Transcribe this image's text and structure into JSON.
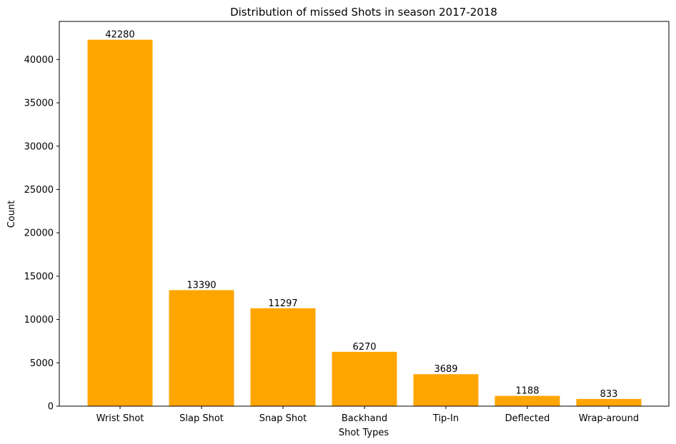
{
  "chart_data": {
    "type": "bar",
    "title": "Distribution of missed Shots in season 2017-2018",
    "xlabel": "Shot Types",
    "ylabel": "Count",
    "categories": [
      "Wrist Shot",
      "Slap Shot",
      "Snap Shot",
      "Backhand",
      "Tip-In",
      "Deflected",
      "Wrap-around"
    ],
    "values": [
      42280,
      13390,
      11297,
      6270,
      3689,
      1188,
      833
    ],
    "data_labels": [
      "42280",
      "13390",
      "11297",
      "6270",
      "3689",
      "1188",
      "833"
    ],
    "yticks": [
      0,
      5000,
      10000,
      15000,
      20000,
      25000,
      30000,
      35000,
      40000
    ],
    "ylim": [
      0,
      44394
    ],
    "bar_color": "#ffa500",
    "grid": false,
    "legend": "none"
  }
}
